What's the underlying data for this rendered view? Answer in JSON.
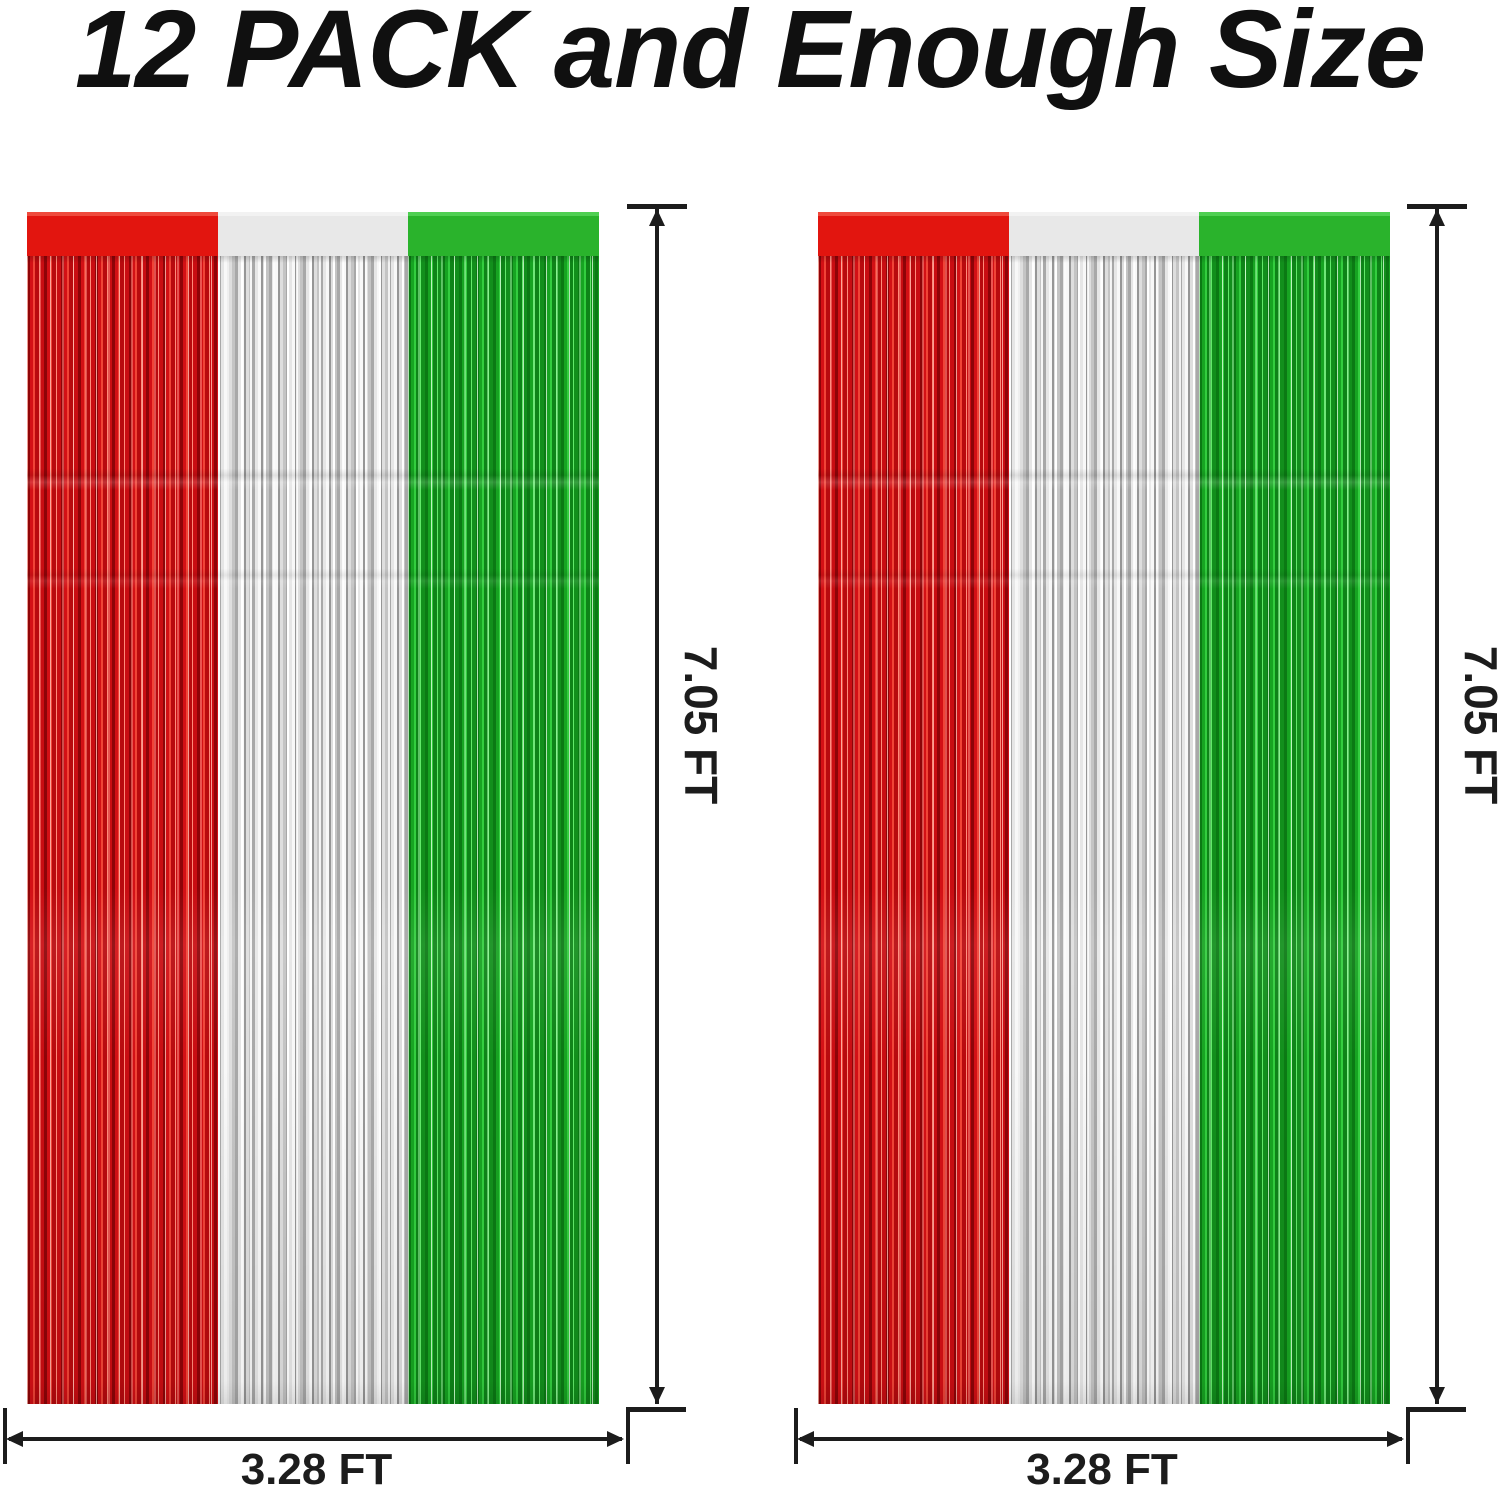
{
  "title": "12 PACK and Enough Size",
  "colors": {
    "red": "#e2150f",
    "silver": "#e8e8e8",
    "green": "#2ab32c",
    "line": "#1c1c1c"
  },
  "curtains": [
    {
      "height_label": "7.05 FT",
      "width_label": "3.28 FT"
    },
    {
      "height_label": "7.05 FT",
      "width_label": "3.28 FT"
    }
  ]
}
